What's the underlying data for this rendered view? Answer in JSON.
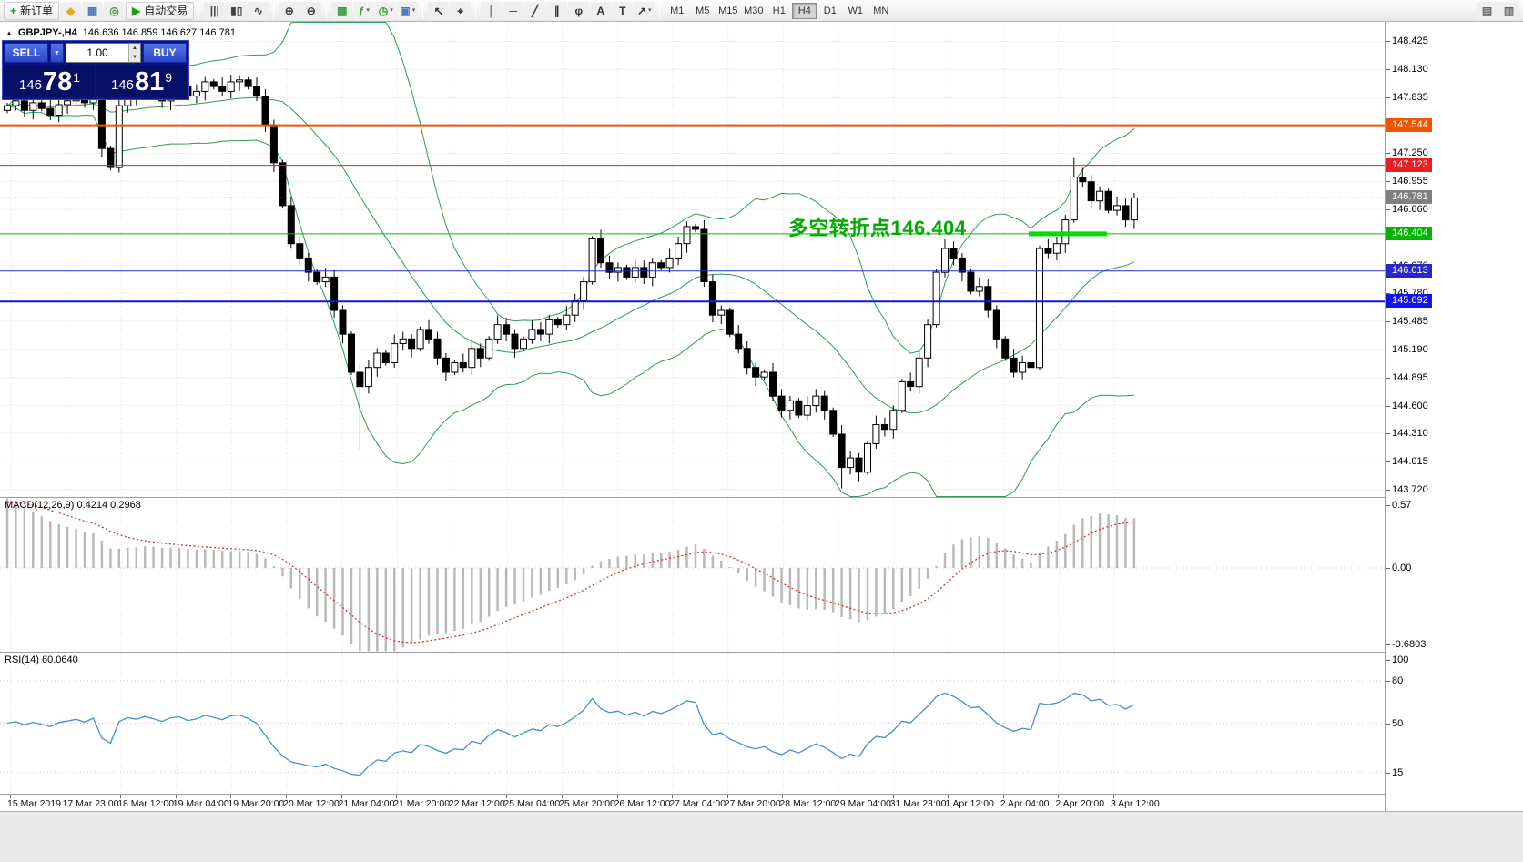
{
  "toolbar": {
    "dropdown_glyph": "▾",
    "active_timeframe": "H4",
    "items": [
      {
        "type": "button",
        "name": "new-order-button",
        "glyph": "+",
        "glyph_color": "#18a018",
        "label": "新订单"
      },
      {
        "type": "icon",
        "name": "market-watch-icon",
        "glyph": "◆",
        "color": "#e6a817"
      },
      {
        "type": "icon",
        "name": "data-window-icon",
        "glyph": "▦",
        "color": "#4a7ab5"
      },
      {
        "type": "icon",
        "name": "navigator-icon",
        "glyph": "◎",
        "color": "#3f9b3f"
      },
      {
        "type": "button",
        "name": "autotrading-button",
        "glyph": "▶",
        "glyph_color": "#18a018",
        "label": "自动交易"
      },
      {
        "type": "sep"
      },
      {
        "type": "icon",
        "name": "bar-chart-icon",
        "glyph": "|||",
        "color": "#444"
      },
      {
        "type": "icon",
        "name": "candlestick-chart-icon",
        "glyph": "▮▯",
        "color": "#444"
      },
      {
        "type": "icon",
        "name": "line-chart-icon",
        "glyph": "∿",
        "color": "#444"
      },
      {
        "type": "sep"
      },
      {
        "type": "icon",
        "name": "zoom-in-icon",
        "glyph": "⊕",
        "color": "#444"
      },
      {
        "type": "icon",
        "name": "zoom-out-icon",
        "glyph": "⊖",
        "color": "#444"
      },
      {
        "type": "sep"
      },
      {
        "type": "icon",
        "name": "tile-windows-icon",
        "glyph": "▦",
        "color": "#3f9b3f"
      },
      {
        "type": "icon",
        "name": "indicators-icon",
        "glyph": "ƒ",
        "color": "#3f9b3f",
        "dropdown": true
      },
      {
        "type": "icon",
        "name": "period-converter-icon",
        "glyph": "◷",
        "color": "#18a018",
        "dropdown": true
      },
      {
        "type": "icon",
        "name": "templates-icon",
        "glyph": "▣",
        "color": "#4a7ab5",
        "dropdown": true
      },
      {
        "type": "sep"
      },
      {
        "type": "icon",
        "name": "cursor-icon",
        "glyph": "↖",
        "color": "#333"
      },
      {
        "type": "icon",
        "name": "crosshair-icon",
        "glyph": "⌖",
        "color": "#333"
      },
      {
        "type": "sep"
      },
      {
        "type": "icon",
        "name": "vertical-line-icon",
        "glyph": "│",
        "color": "#333"
      },
      {
        "type": "icon",
        "name": "horizontal-line-icon",
        "glyph": "─",
        "color": "#333"
      },
      {
        "type": "icon",
        "name": "trendline-icon",
        "glyph": "╱",
        "color": "#333"
      },
      {
        "type": "icon",
        "name": "channel-icon",
        "glyph": "∥",
        "color": "#333"
      },
      {
        "type": "icon",
        "name": "fibonacci-icon",
        "glyph": "φ",
        "color": "#333"
      },
      {
        "type": "icon",
        "name": "text-icon",
        "glyph": "A",
        "color": "#333"
      },
      {
        "type": "icon",
        "name": "label-icon",
        "glyph": "T",
        "color": "#333"
      },
      {
        "type": "icon",
        "name": "arrows-icon",
        "glyph": "↗",
        "color": "#333",
        "dropdown": true
      },
      {
        "type": "sep"
      },
      {
        "type": "tf",
        "label": "M1"
      },
      {
        "type": "tf",
        "label": "M5"
      },
      {
        "type": "tf",
        "label": "M15"
      },
      {
        "type": "tf",
        "label": "M30"
      },
      {
        "type": "tf",
        "label": "H1"
      },
      {
        "type": "tf",
        "label": "H4",
        "active": true
      },
      {
        "type": "tf",
        "label": "D1"
      },
      {
        "type": "tf",
        "label": "W1"
      },
      {
        "type": "tf",
        "label": "MN"
      },
      {
        "type": "spacer"
      },
      {
        "type": "icon",
        "name": "chart-list-icon",
        "glyph": "▤",
        "color": "#666"
      },
      {
        "type": "icon",
        "name": "docking-icon",
        "glyph": "▥",
        "color": "#666"
      }
    ]
  },
  "chart": {
    "collapse_arrow": "▲",
    "symbol_title": "GBPJPY-,H4",
    "ohlc_text": "146.636 146.859 146.627 146.781",
    "trade_panel": {
      "sell_label": "SELL",
      "buy_label": "BUY",
      "lot": "1.00",
      "dropdown_glyph": "▼",
      "spin_up": "▲",
      "spin_down": "▼",
      "sell_price": {
        "prefix": "146",
        "big": "78",
        "sup": "1"
      },
      "buy_price": {
        "prefix": "146",
        "big": "81",
        "sup": "9"
      }
    }
  },
  "chart_data": {
    "type": "candlestick",
    "symbol": "GBPJPY",
    "timeframe": "H4",
    "price_range": [
      143.64,
      148.63
    ],
    "first_open": 147.7,
    "closes": [
      147.75,
      147.8,
      147.7,
      147.78,
      147.72,
      147.65,
      147.76,
      147.8,
      147.85,
      147.78,
      147.88,
      147.3,
      147.1,
      147.75,
      147.9,
      147.85,
      147.95,
      147.88,
      147.8,
      147.92,
      147.95,
      147.85,
      147.9,
      148.0,
      147.95,
      147.9,
      148.0,
      148.02,
      147.95,
      147.85,
      147.55,
      147.15,
      146.7,
      146.3,
      146.15,
      146.0,
      145.9,
      145.95,
      145.6,
      145.35,
      144.95,
      144.8,
      145.0,
      145.15,
      145.05,
      145.25,
      145.3,
      145.2,
      145.4,
      145.3,
      145.1,
      144.95,
      145.05,
      145.0,
      145.2,
      145.1,
      145.3,
      145.45,
      145.35,
      145.2,
      145.3,
      145.4,
      145.35,
      145.5,
      145.45,
      145.55,
      145.7,
      145.9,
      146.35,
      146.1,
      146.0,
      146.05,
      145.95,
      146.05,
      145.95,
      146.1,
      146.05,
      146.15,
      146.3,
      146.48,
      146.45,
      145.9,
      145.55,
      145.6,
      145.35,
      145.2,
      145.0,
      144.9,
      144.95,
      144.7,
      144.55,
      144.65,
      144.5,
      144.6,
      144.7,
      144.55,
      144.3,
      143.95,
      144.05,
      143.9,
      144.2,
      144.4,
      144.35,
      144.55,
      144.85,
      144.8,
      145.1,
      145.45,
      146.0,
      146.25,
      146.15,
      146.0,
      145.8,
      145.85,
      145.6,
      145.3,
      145.1,
      144.95,
      145.05,
      145.0,
      146.25,
      146.2,
      146.3,
      146.55,
      147.0,
      146.95,
      146.75,
      146.85,
      146.65,
      146.7,
      146.55,
      146.781
    ],
    "special_wicks": {
      "41": {
        "low": 144.14
      },
      "97": {
        "low": 143.73
      },
      "124": {
        "high": 147.2
      }
    },
    "y_ticks": [
      "148.425",
      "148.130",
      "147.835",
      "147.540",
      "147.250",
      "146.955",
      "146.660",
      "146.365",
      "146.070",
      "145.780",
      "145.485",
      "145.190",
      "144.895",
      "144.600",
      "144.310",
      "144.015",
      "143.720"
    ],
    "x_labels": [
      "15 Mar 2019",
      "17 Mar 23:00",
      "18 Mar 12:00",
      "19 Mar 04:00",
      "19 Mar 20:00",
      "20 Mar 12:00",
      "21 Mar 04:00",
      "21 Mar 20:00",
      "22 Mar 12:00",
      "25 Mar 04:00",
      "25 Mar 20:00",
      "26 Mar 12:00",
      "27 Mar 04:00",
      "27 Mar 20:00",
      "28 Mar 12:00",
      "29 Mar 04:00",
      "31 Mar 23:00",
      "1 Apr 12:00",
      "2 Apr 04:00",
      "2 Apr 20:00",
      "3 Apr 12:00"
    ],
    "bollinger": {
      "period": 20,
      "deviation": 2,
      "color": "#2E9E4F"
    },
    "hlines": [
      {
        "price": 147.544,
        "label": "147.544",
        "color": "#ef5500",
        "badge_color": "#ef5500",
        "width": 2
      },
      {
        "price": 147.123,
        "label": "147.123",
        "color": "#e82020",
        "badge_color": "#e82020",
        "width": 1
      },
      {
        "price": 146.781,
        "label": "146.781",
        "color": "#9a9a9a",
        "badge_color": "#808080",
        "width": 1,
        "style": "dash"
      },
      {
        "price": 146.404,
        "label": "146.404",
        "color": "#00c000",
        "badge_color": "#00b400",
        "width": 1
      },
      {
        "price": 146.013,
        "label": "146.013",
        "color": "#2828c8",
        "badge_color": "#2828c8",
        "width": 1
      },
      {
        "price": 145.692,
        "label": "145.692",
        "color": "#1414e6",
        "badge_color": "#1414e6",
        "width": 2
      }
    ],
    "annotation": {
      "text": "多空转折点146.404",
      "price": 146.404,
      "color": "#00AC00",
      "underline_color": "#00DC00"
    },
    "macd": {
      "label": "MACD(12,26,9) 0.4214 0.2968",
      "fast": 12,
      "slow": 26,
      "signal": 9,
      "range": [
        -0.6803,
        0.57
      ],
      "ticks": [
        {
          "v": 0.57,
          "label": "0.57"
        },
        {
          "v": 0,
          "label": "0.00"
        },
        {
          "v": -0.6803,
          "label": "-0.6803"
        }
      ],
      "hist_color": "#b9b9b9",
      "signal_color": "#d63434"
    },
    "rsi": {
      "label": "RSI(14) 60.0640",
      "period": 14,
      "range": [
        0,
        100
      ],
      "ticks": [
        {
          "v": 100,
          "label": "100"
        },
        {
          "v": 80,
          "label": "80"
        },
        {
          "v": 50,
          "label": "50"
        },
        {
          "v": 15,
          "label": "15"
        }
      ],
      "levels": [
        80,
        50,
        15
      ],
      "color": "#4090dc"
    }
  }
}
